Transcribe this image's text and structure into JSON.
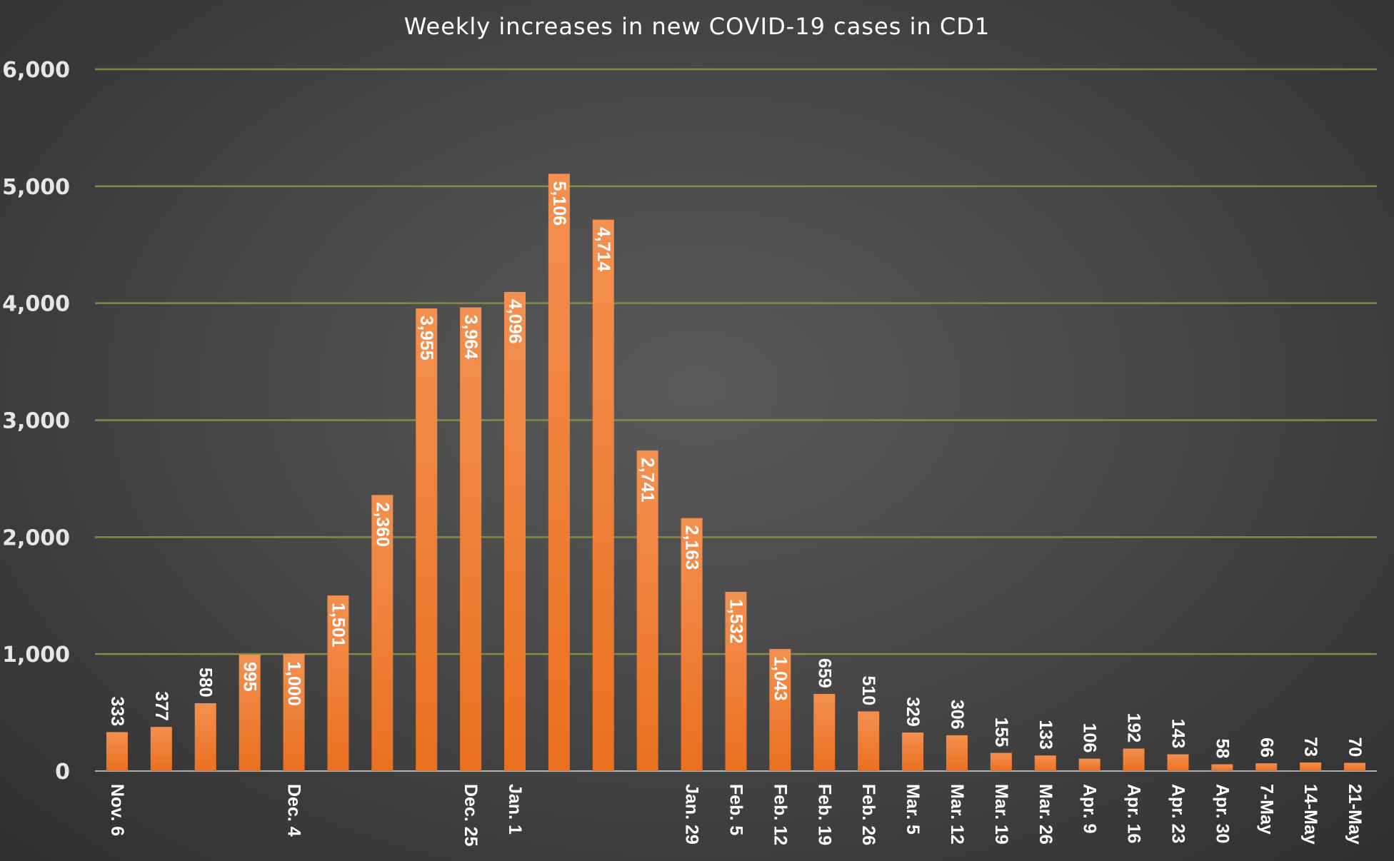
{
  "chart_data": {
    "type": "bar",
    "title": "Weekly increases in new COVID-19 cases in CD1",
    "xlabel": "",
    "ylabel": "",
    "ylim": [
      0,
      6000
    ],
    "yticks": [
      "0",
      "1,000",
      "2,000",
      "3,000",
      "4,000",
      "5,000",
      "6,000"
    ],
    "grid": true,
    "legend": "none",
    "bar_color": "#f07a2a",
    "grid_color": "#8c8a3c",
    "categories": [
      "Nov. 6",
      "",
      "",
      "",
      "Dec. 4",
      "",
      "",
      "",
      "Dec. 25",
      "Jan. 1",
      "",
      "",
      "",
      "Jan. 29",
      "Feb. 5",
      "Feb. 12",
      "Feb. 19",
      "Feb. 26",
      "Mar. 5",
      "Mar. 12",
      "Mar. 19",
      "Mar. 26",
      "Apr. 9",
      "Apr. 16",
      "Apr. 23",
      "Apr. 30",
      "7-May",
      "14-May",
      "21-May"
    ],
    "values": [
      333,
      377,
      580,
      995,
      1000,
      1501,
      2360,
      3955,
      3964,
      4096,
      5106,
      4714,
      2741,
      2163,
      1532,
      1043,
      659,
      510,
      329,
      306,
      155,
      133,
      106,
      192,
      143,
      58,
      66,
      73,
      70
    ],
    "value_labels": [
      "333",
      "377",
      "580",
      "995",
      "1,000",
      "1,501",
      "2,360",
      "3,955",
      "3,964",
      "4,096",
      "5,106",
      "4,714",
      "2,741",
      "2,163",
      "1,532",
      "1,043",
      "659",
      "510",
      "329",
      "306",
      "155",
      "133",
      "106",
      "192",
      "143",
      "58",
      "66",
      "73",
      "70"
    ]
  }
}
